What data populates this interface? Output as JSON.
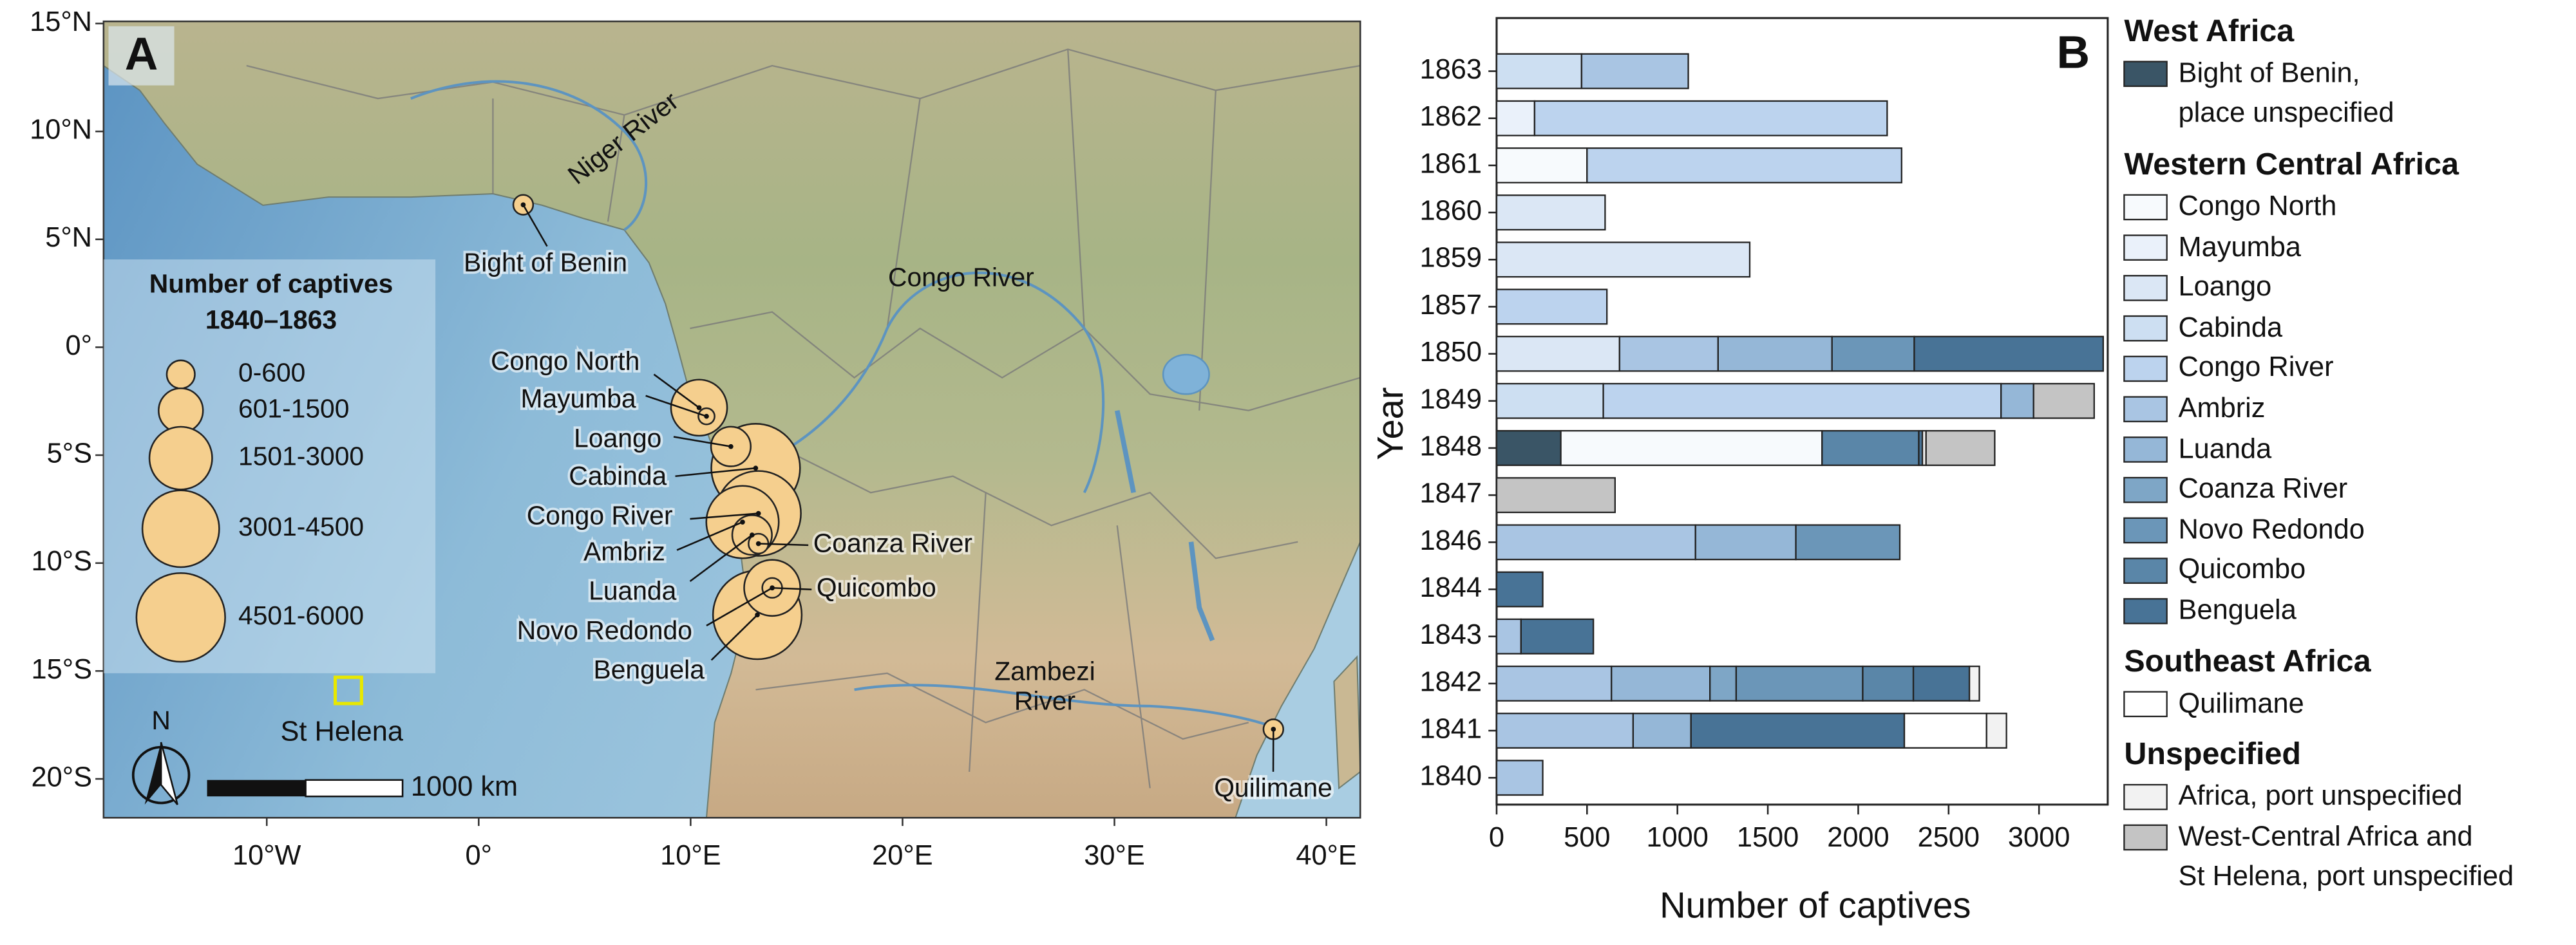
{
  "map": {
    "panel_label": "A",
    "xlim": [
      -17.7,
      41.6
    ],
    "ylim": [
      -21.8,
      15.1
    ],
    "xticks": [
      {
        "value": -10,
        "label": "10°W"
      },
      {
        "value": 0,
        "label": "0°"
      },
      {
        "value": 10,
        "label": "10°E"
      },
      {
        "value": 20,
        "label": "20°E"
      },
      {
        "value": 30,
        "label": "30°E"
      },
      {
        "value": 40,
        "label": "40°E"
      }
    ],
    "yticks": [
      {
        "value": 15,
        "label": "15°N"
      },
      {
        "value": 10,
        "label": "10°N"
      },
      {
        "value": 5,
        "label": "5°N"
      },
      {
        "value": 0,
        "label": "0°"
      },
      {
        "value": -5,
        "label": "5°S"
      },
      {
        "value": -10,
        "label": "10°S"
      },
      {
        "value": -15,
        "label": "15°S"
      },
      {
        "value": -20,
        "label": "20°S"
      }
    ],
    "legend_title": [
      "Number of captives",
      "1840–1863"
    ],
    "size_classes": [
      {
        "value": 600,
        "label": "0-600"
      },
      {
        "value": 1500,
        "label": "601-1500"
      },
      {
        "value": 3000,
        "label": "1501-3000"
      },
      {
        "value": 4500,
        "label": "3001-4500"
      },
      {
        "value": 6000,
        "label": "4501-6000"
      }
    ],
    "ports": [
      {
        "label": "Cabinda",
        "lon": 13.07,
        "lat": -5.6,
        "size": 6000
      },
      {
        "label": "Benguela",
        "lon": 13.15,
        "lat": -12.4,
        "size": 6000
      },
      {
        "label": "Congo River",
        "lon": 13.2,
        "lat": -7.7,
        "size": 5500
      },
      {
        "label": "Ambriz",
        "lon": 12.45,
        "lat": -8.1,
        "size": 4000
      },
      {
        "label": "Novo Redondo",
        "lon": 13.85,
        "lat": -11.15,
        "size": 2400
      },
      {
        "label": "Congo North",
        "lon": 10.4,
        "lat": -2.8,
        "size": 2400
      },
      {
        "label": "Loango",
        "lon": 11.9,
        "lat": -4.6,
        "size": 1200
      },
      {
        "label": "Luanda",
        "lon": 12.9,
        "lat": -8.7,
        "size": 1200
      },
      {
        "label": "Mayumba",
        "lon": 10.75,
        "lat": -3.2,
        "size": 200
      },
      {
        "label": "Coanza River",
        "lon": 13.2,
        "lat": -9.1,
        "size": 300
      },
      {
        "label": "Quicombo",
        "lon": 13.85,
        "lat": -11.15,
        "size": 300
      },
      {
        "label": "Bight of Benin",
        "lon": 2.1,
        "lat": 6.6,
        "size": 300
      },
      {
        "label": "Quilimane",
        "lon": 37.5,
        "lat": -17.7,
        "size": 300
      }
    ],
    "rivers": [
      {
        "lines": [
          "Niger River"
        ]
      },
      {
        "lines": [
          "Congo River"
        ]
      },
      {
        "lines": [
          "Zambezi",
          "River"
        ]
      }
    ],
    "island": {
      "label": "St Helena",
      "lon": -6.15,
      "lat": -15.9
    },
    "scale_label": "1000 km",
    "north_label": "N"
  },
  "chart_data": {
    "type": "bar",
    "orientation": "horizontal",
    "stacked": true,
    "panel_label": "B",
    "y_label": "Year",
    "x_label": "Number of captives",
    "categories": [
      "1863",
      "1862",
      "1861",
      "1860",
      "1859",
      "1857",
      "1850",
      "1849",
      "1848",
      "1847",
      "1846",
      "1844",
      "1843",
      "1842",
      "1841",
      "1840"
    ],
    "xlim": [
      0,
      3380
    ],
    "xticks": [
      0,
      500,
      1000,
      1500,
      2000,
      2500,
      3000
    ],
    "groups": [
      {
        "title": "West Africa",
        "series": [
          {
            "name": "Bight of Benin,\nplace unspecified",
            "color": "#3a5566",
            "values": [
              null,
              null,
              null,
              null,
              null,
              null,
              null,
              null,
              355,
              null,
              null,
              null,
              null,
              null,
              null,
              null
            ]
          }
        ]
      },
      {
        "title": "Western Central Africa",
        "series": [
          {
            "name": "Congo North",
            "color": "#f7fafd",
            "values": [
              null,
              null,
              500,
              null,
              null,
              null,
              null,
              null,
              1445,
              null,
              null,
              null,
              null,
              null,
              null,
              null
            ]
          },
          {
            "name": "Mayumba",
            "color": "#eaf1fa",
            "values": [
              null,
              210,
              null,
              null,
              null,
              null,
              null,
              null,
              null,
              null,
              null,
              null,
              null,
              null,
              null,
              null
            ]
          },
          {
            "name": "Loango",
            "color": "#dbe7f5",
            "values": [
              null,
              null,
              null,
              600,
              1400,
              null,
              680,
              null,
              null,
              null,
              null,
              null,
              null,
              null,
              null,
              null
            ]
          },
          {
            "name": "Cabinda",
            "color": "#cddff2",
            "values": [
              470,
              null,
              null,
              null,
              null,
              null,
              null,
              590,
              null,
              null,
              null,
              null,
              null,
              null,
              null,
              null
            ]
          },
          {
            "name": "Congo River",
            "color": "#bcd3ee",
            "values": [
              null,
              1950,
              1740,
              null,
              null,
              610,
              null,
              2200,
              null,
              null,
              null,
              null,
              null,
              null,
              null,
              null
            ]
          },
          {
            "name": "Ambriz",
            "color": "#a9c5e3",
            "values": [
              590,
              null,
              null,
              null,
              null,
              null,
              545,
              null,
              null,
              null,
              1100,
              null,
              135,
              635,
              755,
              255
            ]
          },
          {
            "name": "Luanda",
            "color": "#95b7d7",
            "values": [
              null,
              null,
              null,
              null,
              null,
              null,
              630,
              180,
              null,
              null,
              555,
              null,
              null,
              545,
              320,
              null
            ]
          },
          {
            "name": "Coanza River",
            "color": "#7ea6c6",
            "values": [
              null,
              null,
              null,
              null,
              null,
              null,
              null,
              null,
              null,
              null,
              null,
              null,
              null,
              145,
              null,
              null
            ]
          },
          {
            "name": "Novo Redondo",
            "color": "#6b96b8",
            "values": [
              null,
              null,
              null,
              null,
              null,
              null,
              455,
              null,
              null,
              null,
              575,
              null,
              null,
              700,
              null,
              null
            ]
          },
          {
            "name": "Quicombo",
            "color": "#5a86a8",
            "values": [
              null,
              null,
              null,
              null,
              null,
              null,
              null,
              null,
              535,
              null,
              null,
              null,
              null,
              280,
              null,
              null
            ]
          },
          {
            "name": "Benguela",
            "color": "#487396",
            "values": [
              null,
              null,
              null,
              null,
              null,
              null,
              1045,
              null,
              20,
              null,
              null,
              255,
              400,
              310,
              1180,
              null
            ]
          }
        ]
      },
      {
        "title": "Southeast Africa",
        "series": [
          {
            "name": "Quilimane",
            "color": "#ffffff",
            "values": [
              null,
              null,
              null,
              null,
              null,
              null,
              null,
              null,
              null,
              null,
              null,
              null,
              null,
              null,
              455,
              null
            ]
          }
        ]
      },
      {
        "title": "Unspecified",
        "series": [
          {
            "name": "Africa, port unspecified",
            "color": "#f2f2f2",
            "values": [
              null,
              null,
              null,
              null,
              null,
              null,
              null,
              null,
              20,
              null,
              null,
              null,
              null,
              55,
              110,
              null
            ]
          },
          {
            "name": "West-Central Africa and\nSt Helena, port unspecified",
            "color": "#c4c4c4",
            "values": [
              null,
              null,
              null,
              null,
              null,
              null,
              null,
              335,
              380,
              655,
              null,
              null,
              null,
              null,
              null,
              null
            ]
          }
        ]
      }
    ]
  }
}
